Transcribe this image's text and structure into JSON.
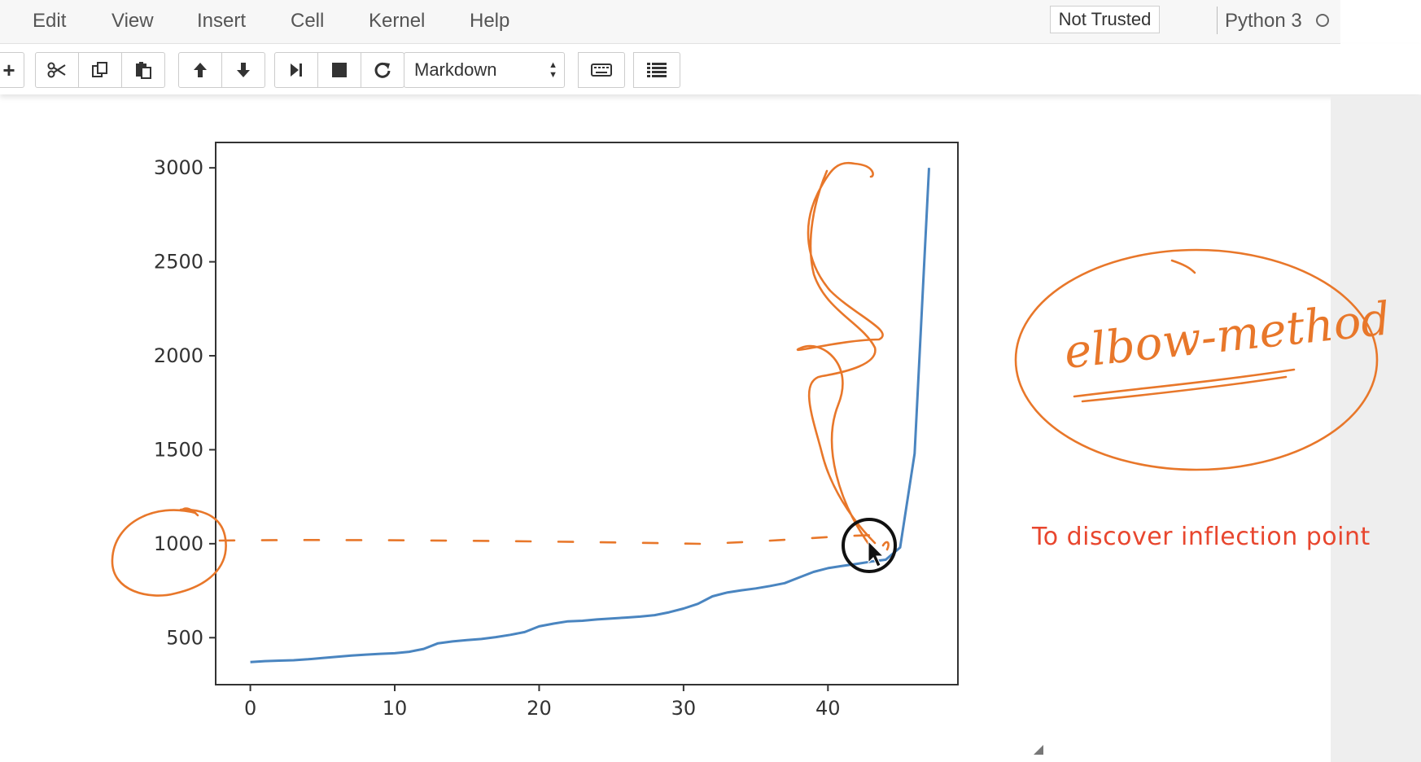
{
  "menubar": {
    "items": [
      "Edit",
      "View",
      "Insert",
      "Cell",
      "Kernel",
      "Help"
    ],
    "trust_label": "Not Trusted",
    "kernel_name": "Python 3"
  },
  "toolbar": {
    "add_icon": "+",
    "cell_type": "Markdown"
  },
  "annotations": {
    "inflection_text": "To discover inflection point",
    "elbow_label": "elbow-method",
    "ink_color": "#e8772a"
  },
  "chart_data": {
    "type": "line",
    "title": "",
    "xlabel": "",
    "ylabel": "",
    "x_ticks": [
      0,
      10,
      20,
      30,
      40
    ],
    "y_ticks": [
      500,
      1000,
      1500,
      2000,
      2500,
      3000
    ],
    "xlim": [
      -2.4,
      49
    ],
    "ylim": [
      250,
      3135
    ],
    "series": [
      {
        "color": "#4a85c0",
        "x": [
          0,
          1,
          2,
          3,
          4,
          5,
          6,
          7,
          8,
          9,
          10,
          11,
          12,
          13,
          14,
          15,
          16,
          17,
          18,
          19,
          20,
          21,
          22,
          23,
          24,
          25,
          26,
          27,
          28,
          29,
          30,
          31,
          32,
          33,
          34,
          35,
          36,
          37,
          38,
          39,
          40,
          41,
          42,
          43,
          44,
          45,
          46,
          47
        ],
        "y": [
          370,
          375,
          378,
          380,
          385,
          392,
          398,
          405,
          410,
          414,
          417,
          425,
          440,
          470,
          480,
          487,
          493,
          503,
          515,
          530,
          560,
          575,
          587,
          590,
          597,
          602,
          607,
          612,
          620,
          635,
          655,
          680,
          720,
          740,
          752,
          762,
          775,
          790,
          820,
          850,
          870,
          882,
          893,
          905,
          915,
          980,
          1480,
          3000
        ]
      }
    ]
  }
}
